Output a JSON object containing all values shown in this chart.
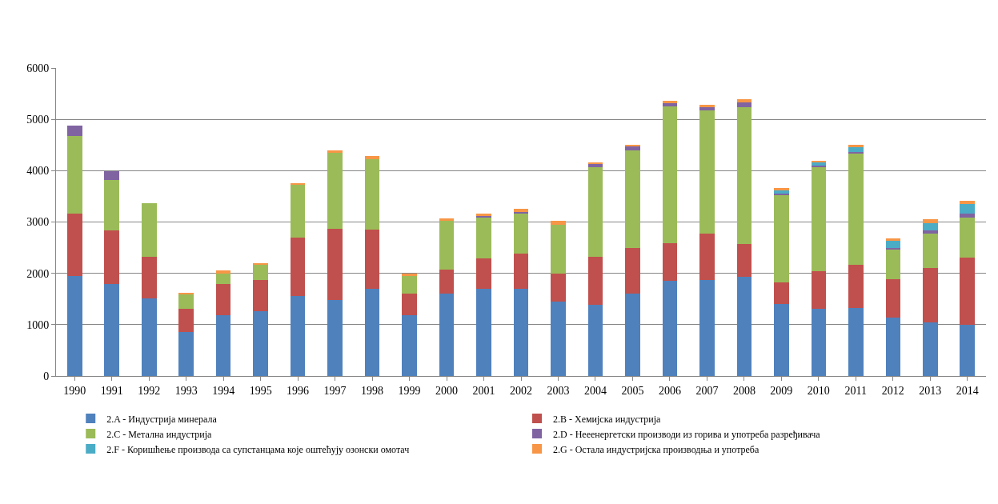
{
  "chart_data": {
    "type": "bar",
    "stacked": true,
    "categories": [
      "1990",
      "1991",
      "1992",
      "1993",
      "1994",
      "1995",
      "1996",
      "1997",
      "1998",
      "1999",
      "2000",
      "2001",
      "2002",
      "2003",
      "2004",
      "2005",
      "2006",
      "2007",
      "2008",
      "2009",
      "2010",
      "2011",
      "2012",
      "2013",
      "2014"
    ],
    "series": [
      {
        "name": "2.A - Индустрија минерала",
        "color": "#4f81bd",
        "values": [
          1950,
          1790,
          1510,
          850,
          1180,
          1260,
          1560,
          1480,
          1700,
          1190,
          1600,
          1700,
          1700,
          1450,
          1380,
          1600,
          1860,
          1870,
          1940,
          1410,
          1310,
          1320,
          1130,
          1050,
          1000
        ]
      },
      {
        "name": "2.B - Хемијска индустрија",
        "color": "#c0504d",
        "values": [
          1220,
          1050,
          810,
          460,
          610,
          610,
          1130,
          1380,
          1150,
          420,
          470,
          590,
          680,
          540,
          940,
          900,
          730,
          910,
          630,
          420,
          730,
          850,
          750,
          1050,
          1300
        ]
      },
      {
        "name": "2.C - Метална индустрија",
        "color": "#9bbb59",
        "values": [
          1510,
          980,
          1040,
          280,
          210,
          290,
          1040,
          1500,
          1380,
          340,
          950,
          800,
          790,
          960,
          1740,
          1900,
          2660,
          2400,
          2670,
          1690,
          2020,
          2160,
          580,
          670,
          790
        ]
      },
      {
        "name": "2.D - Нееенергетски производи из горива и употреба разређивача",
        "color": "#8064a2",
        "values": [
          200,
          170,
          0,
          0,
          0,
          0,
          0,
          0,
          0,
          0,
          0,
          30,
          30,
          0,
          70,
          70,
          70,
          70,
          90,
          40,
          40,
          40,
          40,
          60,
          70
        ]
      },
      {
        "name": "2.F - Коришћење производа са супстанцама које оштећују озонски омотач",
        "color": "#4bacc6",
        "values": [
          0,
          0,
          0,
          0,
          0,
          0,
          0,
          0,
          0,
          0,
          0,
          0,
          0,
          0,
          0,
          0,
          0,
          0,
          0,
          50,
          60,
          90,
          130,
          150,
          190
        ]
      },
      {
        "name": "2.G - Остала индустријска производња и употреба",
        "color": "#f79646",
        "values": [
          0,
          0,
          0,
          30,
          50,
          40,
          30,
          30,
          60,
          50,
          50,
          50,
          50,
          70,
          30,
          40,
          40,
          30,
          70,
          50,
          40,
          50,
          50,
          80,
          60
        ]
      }
    ],
    "ylim": [
      0,
      6000
    ],
    "yticks": [
      0,
      1000,
      2000,
      3000,
      4000,
      5000,
      6000
    ],
    "grid": "y",
    "legend": "bottom"
  }
}
